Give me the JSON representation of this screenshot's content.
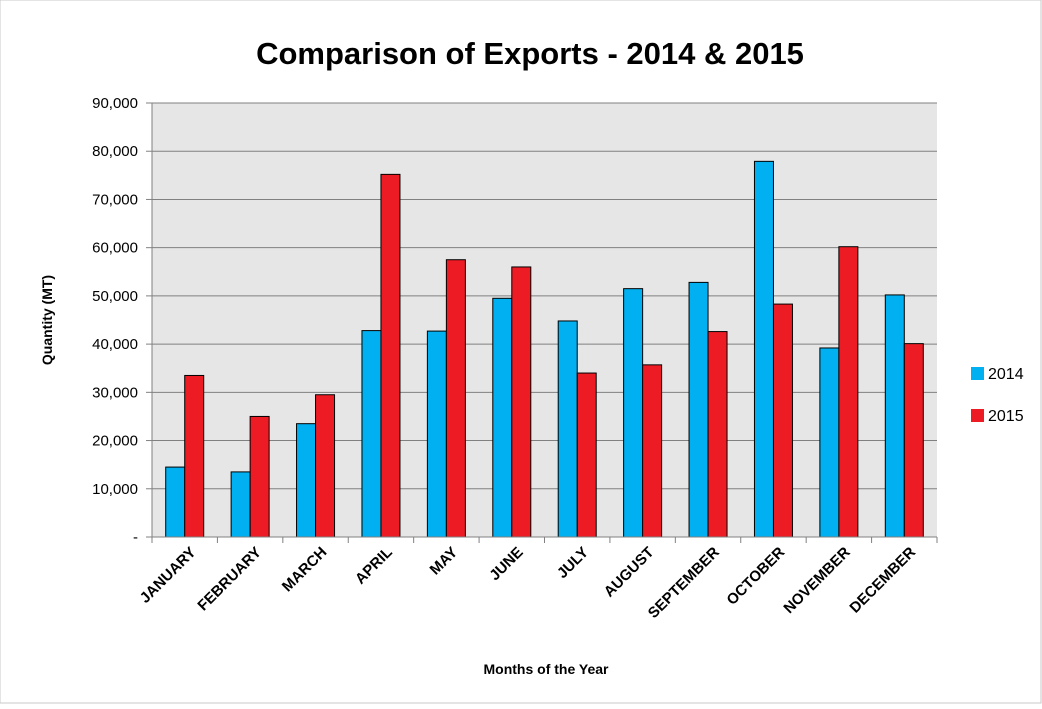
{
  "chart_data": {
    "type": "bar",
    "title": "Comparison of Exports - 2014 & 2015",
    "xlabel": "Months of the Year",
    "ylabel": "Quantity (MT)",
    "categories": [
      "JANUARY",
      "FEBRUARY",
      "MARCH",
      "APRIL",
      "MAY",
      "JUNE",
      "JULY",
      "AUGUST",
      "SEPTEMBER",
      "OCTOBER",
      "NOVEMBER",
      "DECEMBER"
    ],
    "series": [
      {
        "name": "2014",
        "color": "#00b0f0",
        "values": [
          14500,
          13500,
          23500,
          42800,
          42700,
          49500,
          44800,
          51500,
          52800,
          77900,
          39200,
          50200
        ]
      },
      {
        "name": "2015",
        "color": "#ed1c24",
        "values": [
          33500,
          25000,
          29500,
          75200,
          57500,
          56000,
          34000,
          35700,
          42600,
          48300,
          60200,
          40100
        ]
      }
    ],
    "ylim": [
      0,
      90000
    ],
    "yticks": [
      0,
      10000,
      20000,
      30000,
      40000,
      50000,
      60000,
      70000,
      80000,
      90000
    ],
    "ytick_labels": [
      "-",
      "10,000",
      "20,000",
      "30,000",
      "40,000",
      "50,000",
      "60,000",
      "70,000",
      "80,000",
      "90,000"
    ],
    "grid": true,
    "plot_background": "#e6e6e6",
    "legend_position": "right"
  }
}
